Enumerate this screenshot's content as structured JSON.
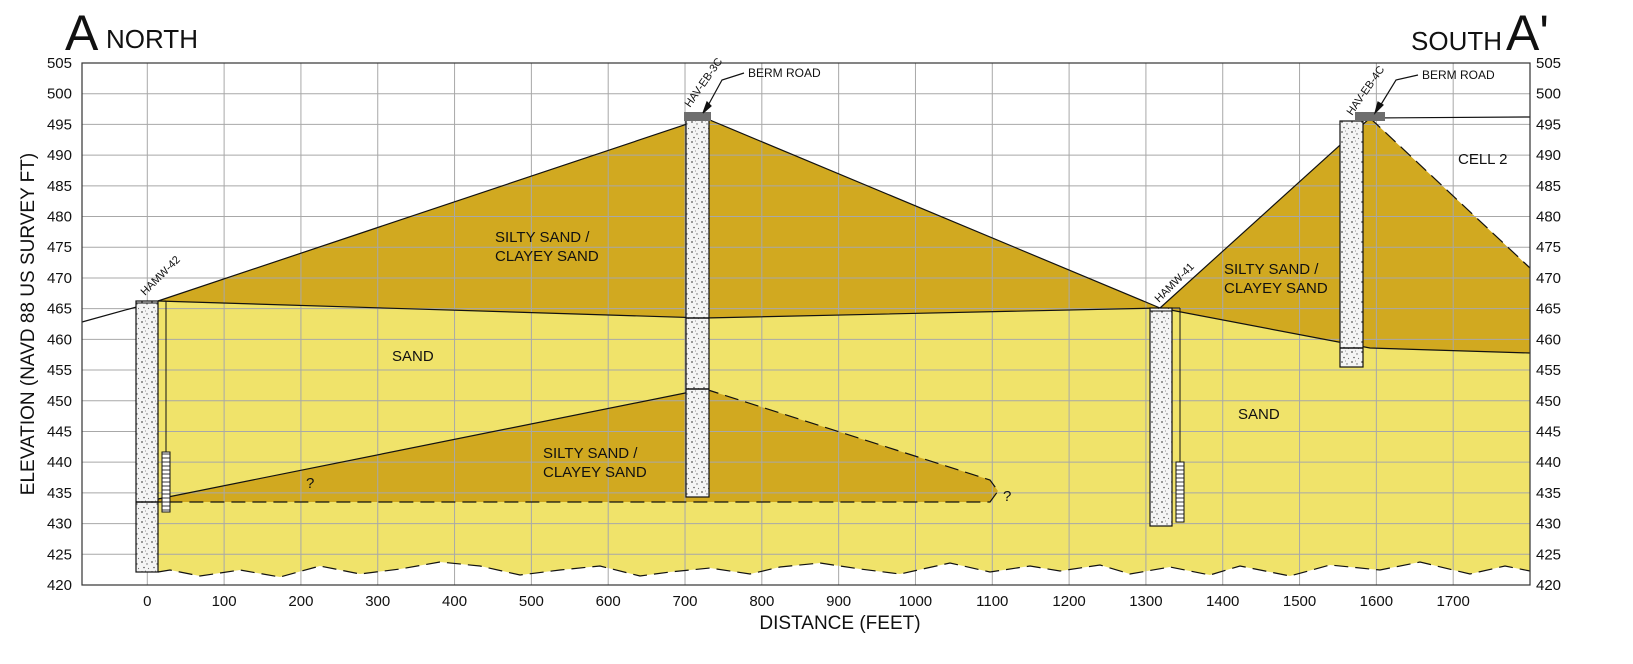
{
  "title": {
    "left_letter": "A",
    "left_direction": "NORTH",
    "right_direction": "SOUTH",
    "right_letter": "A'"
  },
  "axes": {
    "x_label": "DISTANCE (FEET)",
    "y_label": "ELEVATION (NAVD 88 US SURVEY FT)",
    "x_range": [
      -85,
      1800
    ],
    "y_range": [
      420,
      505
    ],
    "x_ticks": [
      "0",
      "100",
      "200",
      "300",
      "400",
      "500",
      "600",
      "700",
      "800",
      "900",
      "1000",
      "1100",
      "1200",
      "1300",
      "1400",
      "1500",
      "1600",
      "1700"
    ],
    "y_ticks": [
      "505",
      "500",
      "495",
      "490",
      "485",
      "480",
      "475",
      "470",
      "465",
      "460",
      "455",
      "450",
      "445",
      "440",
      "435",
      "430",
      "425",
      "420"
    ],
    "grid": true
  },
  "units": {
    "upper_left": "SILTY SAND / CLAYEY SAND",
    "upper_left_line1": "SILTY SAND /",
    "upper_left_line2": "CLAYEY SAND",
    "lower_lens_line1": "SILTY SAND /",
    "lower_lens_line2": "CLAYEY SAND",
    "right_berm_line1": "SILTY SAND /",
    "right_berm_line2": "CLAYEY SAND",
    "sand_left": "SAND",
    "sand_right": "SAND",
    "cell_label": "CELL 2",
    "query_1": "?",
    "query_2": "?"
  },
  "wells": {
    "hamw42": "HAMW-42",
    "haveb3c": "HAV-EB-3C",
    "hamw41": "HAMW-41",
    "haveb4c": "HAV-EB-4C"
  },
  "callouts": {
    "berm_road_1": "BERM ROAD",
    "berm_road_2": "BERM ROAD"
  },
  "colors": {
    "silty_sand": "#d1a920",
    "sand": "#f0e36a",
    "grid": "#a8a8a8",
    "boring": "#ffffff",
    "road_cap": "#6e6e6e"
  }
}
